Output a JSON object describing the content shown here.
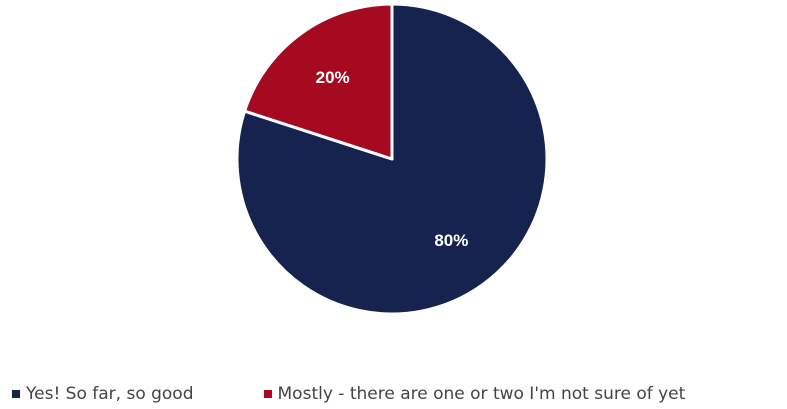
{
  "chart_data": {
    "type": "pie",
    "title": "",
    "start_angle_deg": 0,
    "direction": "clockwise",
    "series": [
      {
        "values": [
          80,
          20
        ]
      }
    ],
    "categories": [
      "Yes! So far, so good",
      "Mostly - there are one or two I'm not sure of yet"
    ],
    "data_labels": [
      "80%",
      "20%"
    ],
    "colors": [
      "#16234f",
      "#a50a21"
    ],
    "legend_position": "bottom"
  }
}
